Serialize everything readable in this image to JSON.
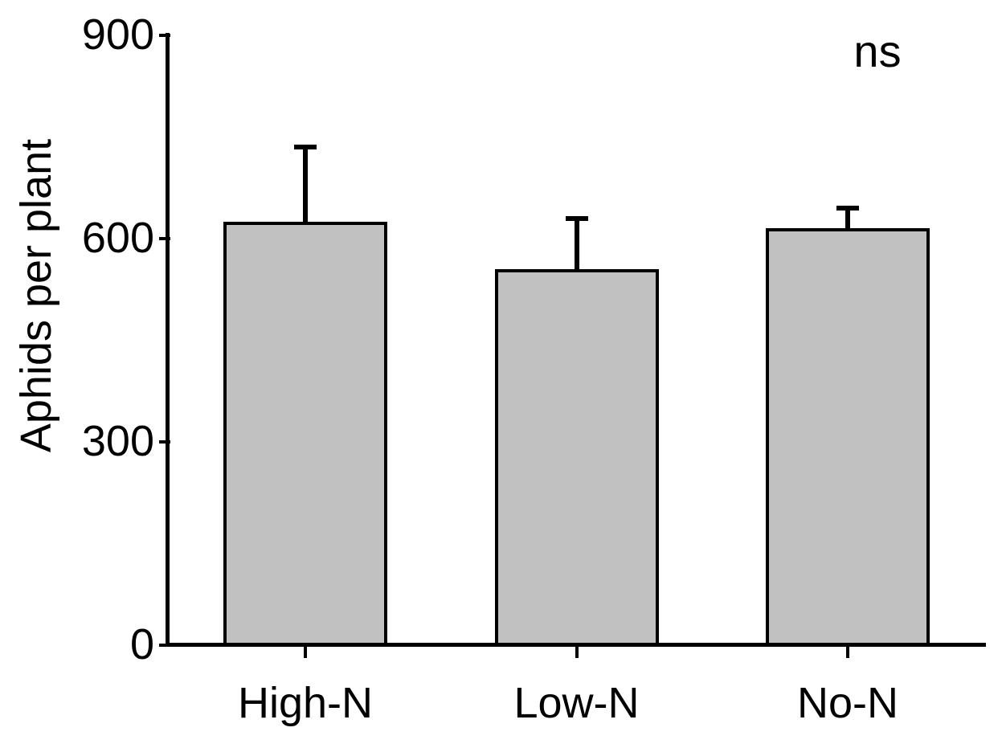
{
  "chart_data": {
    "type": "bar",
    "title": "",
    "ylabel": "Aphids per plant",
    "xlabel": "",
    "categories": [
      "High-N",
      "Low-N",
      "No-N"
    ],
    "values": [
      625,
      555,
      615
    ],
    "errors_upper": [
      110,
      75,
      30
    ],
    "error_style": "upper-only-with-cap",
    "ylim": [
      0,
      900
    ],
    "yticks": [
      0,
      300,
      600,
      900
    ],
    "grid": false,
    "legend": "none",
    "bar_fill_color": "#c1c1c1",
    "bar_border_color": "#000000",
    "axis_color": "#000000",
    "text_color": "#000000",
    "annotation": {
      "text": "ns",
      "position": "top-right"
    }
  }
}
